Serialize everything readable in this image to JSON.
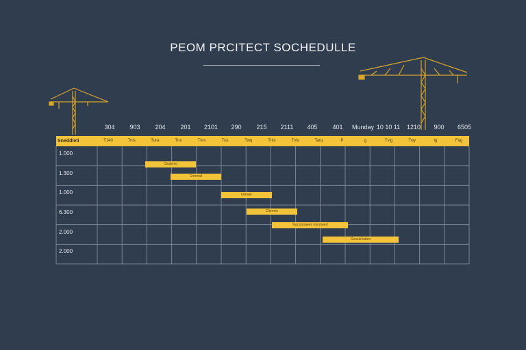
{
  "title": "PEOM PRCITECT SOCHEDULLE",
  "colors": {
    "background": "#2f3d4f",
    "accent": "#f3c43a",
    "grid": "#7d8896",
    "crane": "#d8a52c"
  },
  "icons": [
    "crane-left-icon",
    "crane-right-icon"
  ],
  "header": {
    "band_label": "Sneddleti",
    "columns": [
      "304",
      "903",
      "204",
      "201",
      "2101",
      "290",
      "215",
      "2111",
      "405",
      "401",
      "Munday",
      "10 10 11",
      "1210",
      "900",
      "6505"
    ],
    "sub_labels": [
      "T140",
      "Tnis",
      "Tura",
      "Tns",
      "Tvrs",
      "Tus",
      "Twq",
      "Tnis",
      "Tvis",
      "Tarq",
      "P",
      "g",
      "Tvig",
      "Twy",
      "Ig",
      "Fag"
    ]
  },
  "chart_data": {
    "type": "gantt",
    "title": "PEOM PRCITECT SOCHEDULLE",
    "rows": [
      "1.000",
      "1.300",
      "1.000",
      "6.300",
      "2.000",
      "2.000"
    ],
    "tasks": [
      {
        "label": "Cludemo",
        "start": 2.0,
        "end": 4.0
      },
      {
        "label": "Enrrend",
        "start": 3.0,
        "end": 5.0
      },
      {
        "label": "Ulmeer",
        "start": 5.0,
        "end": 7.0
      },
      {
        "label": "Cliemes",
        "start": 6.0,
        "end": 8.0
      },
      {
        "label": "Tacconnaeen Icermeed",
        "start": 7.0,
        "end": 10.0
      },
      {
        "label": "Consaricaton",
        "start": 9.0,
        "end": 12.0
      }
    ],
    "grid": true
  }
}
